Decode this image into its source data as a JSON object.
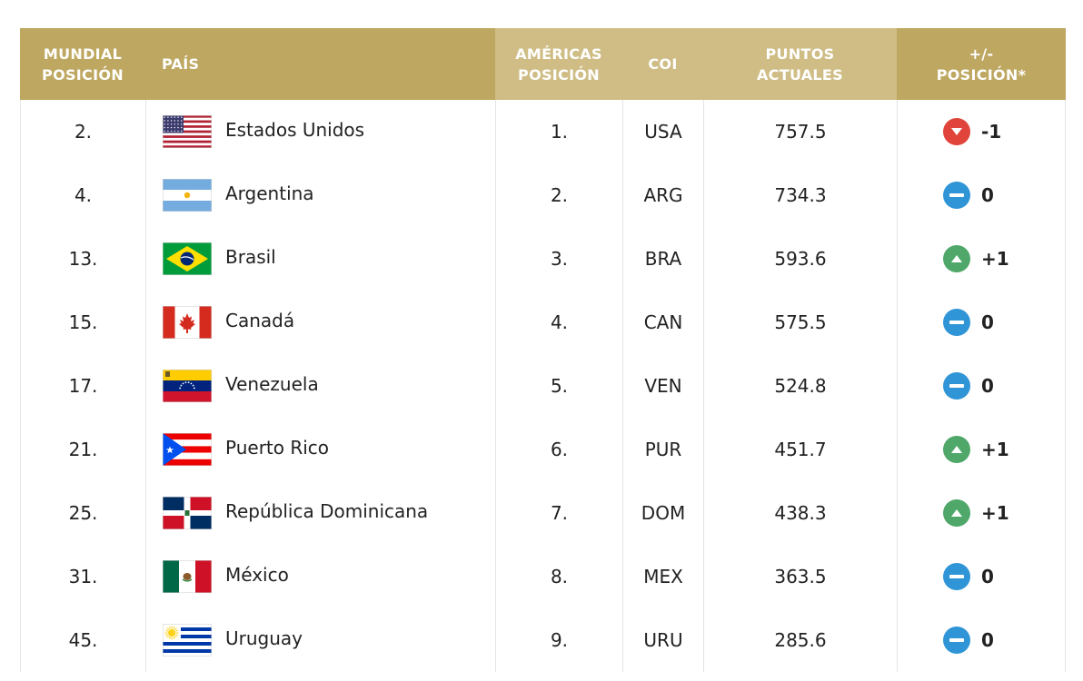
{
  "table": {
    "headers": {
      "mundial": "MUNDIAL\nPOSICIÓN",
      "pais": "PAÍS",
      "americas": "AMÉRICAS\nPOSICIÓN",
      "coi": "COI",
      "puntos": "PUNTOS\nACTUALES",
      "cambio": "+/-\nPOSICIÓN*"
    },
    "colors": {
      "header_dark": "#bea760",
      "header_light": "#cfbd85",
      "down": "#e0443b",
      "neutral": "#2f95d6",
      "up": "#4fa86a"
    },
    "rows": [
      {
        "mundial": "2.",
        "pais": "Estados Unidos",
        "flag": "usa-flag",
        "americas": "1.",
        "coi": "USA",
        "puntos": "757.5",
        "trend": "down",
        "cambio": "-1"
      },
      {
        "mundial": "4.",
        "pais": "Argentina",
        "flag": "argentina-flag",
        "americas": "2.",
        "coi": "ARG",
        "puntos": "734.3",
        "trend": "neutral",
        "cambio": "0"
      },
      {
        "mundial": "13.",
        "pais": "Brasil",
        "flag": "brazil-flag",
        "americas": "3.",
        "coi": "BRA",
        "puntos": "593.6",
        "trend": "up",
        "cambio": "+1"
      },
      {
        "mundial": "15.",
        "pais": "Canadá",
        "flag": "canada-flag",
        "americas": "4.",
        "coi": "CAN",
        "puntos": "575.5",
        "trend": "neutral",
        "cambio": "0"
      },
      {
        "mundial": "17.",
        "pais": "Venezuela",
        "flag": "venezuela-flag",
        "americas": "5.",
        "coi": "VEN",
        "puntos": "524.8",
        "trend": "neutral",
        "cambio": "0"
      },
      {
        "mundial": "21.",
        "pais": "Puerto Rico",
        "flag": "puerto-rico-flag",
        "americas": "6.",
        "coi": "PUR",
        "puntos": "451.7",
        "trend": "up",
        "cambio": "+1"
      },
      {
        "mundial": "25.",
        "pais": "República Dominicana",
        "flag": "dominican-republic-flag",
        "americas": "7.",
        "coi": "DOM",
        "puntos": "438.3",
        "trend": "up",
        "cambio": "+1"
      },
      {
        "mundial": "31.",
        "pais": "México",
        "flag": "mexico-flag",
        "americas": "8.",
        "coi": "MEX",
        "puntos": "363.5",
        "trend": "neutral",
        "cambio": "0"
      },
      {
        "mundial": "45.",
        "pais": "Uruguay",
        "flag": "uruguay-flag",
        "americas": "9.",
        "coi": "URU",
        "puntos": "285.6",
        "trend": "neutral",
        "cambio": "0"
      }
    ]
  }
}
